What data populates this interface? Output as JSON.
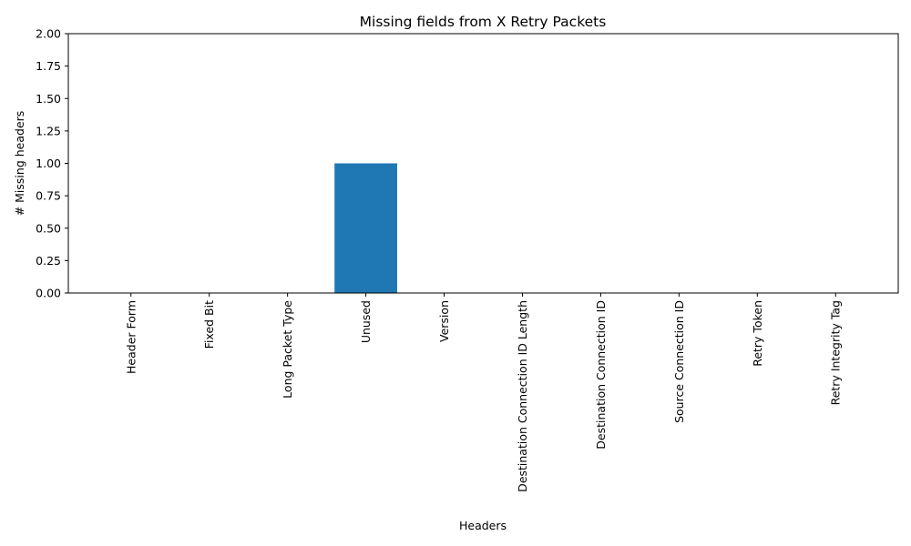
{
  "chart_data": {
    "type": "bar",
    "title": "Missing fields from X Retry Packets",
    "xlabel": "Headers",
    "ylabel": "# Missing headers",
    "categories": [
      "Header Form",
      "Fixed Bit",
      "Long Packet Type",
      "Unused",
      "Version",
      "Destination Connection ID Length",
      "Destination Connection ID",
      "Source Connection ID",
      "Retry Token",
      "Retry Integrity Tag"
    ],
    "values": [
      0,
      0,
      0,
      1,
      0,
      0,
      0,
      0,
      0,
      0
    ],
    "ylim": [
      0,
      2
    ],
    "yticks": [
      "0.00",
      "0.25",
      "0.50",
      "0.75",
      "1.00",
      "1.25",
      "1.50",
      "1.75",
      "2.00"
    ],
    "grid": false,
    "bar_color": "#1f77b4"
  }
}
